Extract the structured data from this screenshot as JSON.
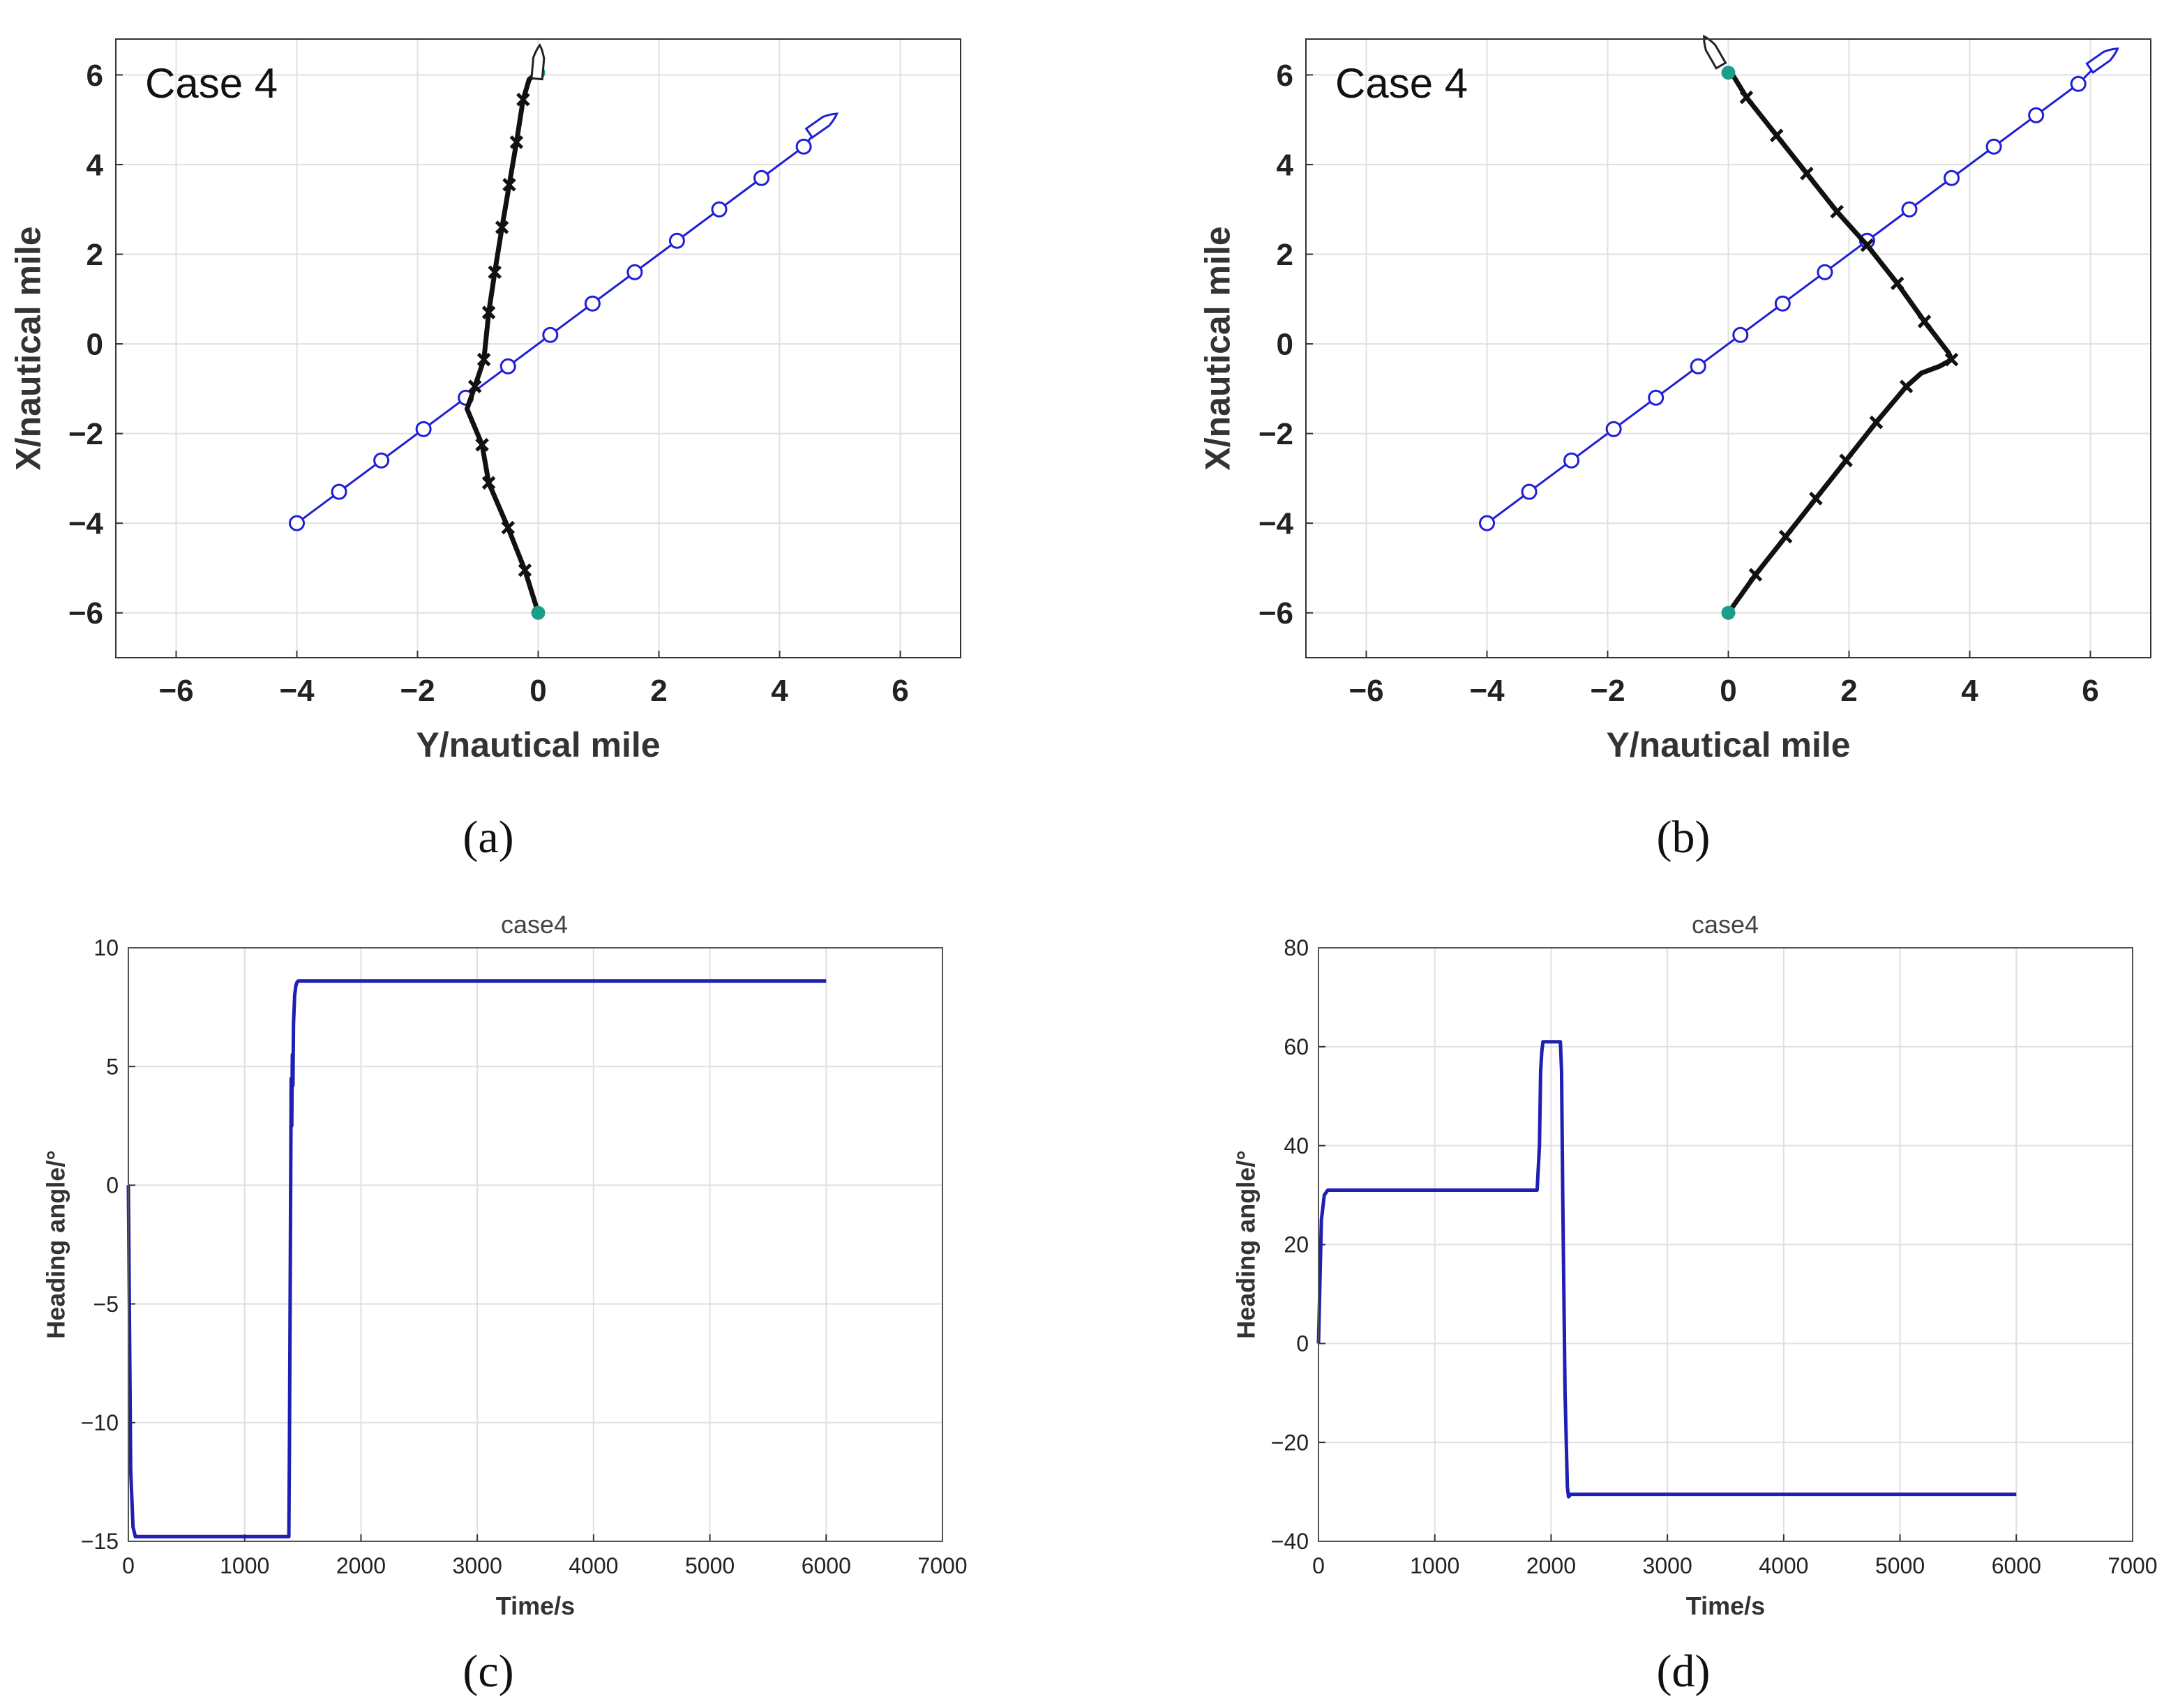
{
  "figure": {
    "colors": {
      "own_ship": "#111111",
      "target_ship": "#1f1fd6",
      "start_end_marker": "#1a9e8a",
      "heading_line": "#1f1fb4",
      "grid": "#e0e0e0",
      "axis": "#333333"
    }
  },
  "chart_data": [
    {
      "id": "a",
      "panel_label": "(a)",
      "type": "line",
      "annotation": "Case 4",
      "xlabel": "Y/nautical mile",
      "ylabel": "X/nautical mile",
      "xlim": [
        -7,
        7
      ],
      "ylim": [
        -7,
        6.8
      ],
      "xticks": [
        -6,
        -4,
        -2,
        0,
        2,
        4,
        6
      ],
      "yticks": [
        -6,
        -4,
        -2,
        0,
        2,
        4,
        6
      ],
      "xtick_labels": [
        "−6",
        "−4",
        "−2",
        "0",
        "2",
        "4",
        "6"
      ],
      "ytick_labels": [
        "−6",
        "−4",
        "−2",
        "0",
        "2",
        "4",
        "6"
      ],
      "grid": true,
      "series": [
        {
          "name": "own ship trajectory",
          "marker": "x",
          "x": [
            0,
            -0.22,
            -0.5,
            -0.82,
            -0.93,
            -1.07,
            -1.18,
            -1.05,
            -0.9,
            -0.82,
            -0.72,
            -0.6,
            -0.48,
            -0.36,
            -0.25,
            -0.15,
            -0.06,
            0.0
          ],
          "y": [
            -6,
            -5.05,
            -4.1,
            -3.1,
            -2.25,
            -1.8,
            -1.45,
            -0.95,
            -0.35,
            0.7,
            1.6,
            2.6,
            3.55,
            4.5,
            5.45,
            5.9,
            6.0,
            6.05
          ],
          "markers_x": [
            -0.22,
            -0.5,
            -0.82,
            -0.93,
            -1.05,
            -0.9,
            -0.82,
            -0.72,
            -0.6,
            -0.48,
            -0.36,
            -0.25
          ],
          "markers_y": [
            -5.05,
            -4.1,
            -3.1,
            -2.25,
            -0.95,
            -0.35,
            0.7,
            1.6,
            2.6,
            3.55,
            4.5,
            5.45
          ]
        },
        {
          "name": "target ship trajectory",
          "marker": "o",
          "x": [
            -4,
            -3.3,
            -2.6,
            -1.9,
            -1.2,
            -0.5,
            0.2,
            0.9,
            1.6,
            2.3,
            3.0,
            3.7,
            4.4
          ],
          "y": [
            -4,
            -3.3,
            -2.6,
            -1.9,
            -1.2,
            -0.5,
            0.2,
            0.9,
            1.6,
            2.3,
            3.0,
            3.7,
            4.4
          ]
        }
      ],
      "start_point": [
        0,
        -6
      ],
      "end_point": [
        0,
        6.05
      ],
      "own_ship_icon": [
        0,
        6.1
      ],
      "target_ship_icon": [
        4.7,
        4.9
      ]
    },
    {
      "id": "b",
      "panel_label": "(b)",
      "type": "line",
      "annotation": "Case 4",
      "xlabel": "Y/nautical mile",
      "ylabel": "X/nautical mile",
      "xlim": [
        -7,
        7
      ],
      "ylim": [
        -7,
        6.8
      ],
      "xticks": [
        -6,
        -4,
        -2,
        0,
        2,
        4,
        6
      ],
      "yticks": [
        -6,
        -4,
        -2,
        0,
        2,
        4,
        6
      ],
      "xtick_labels": [
        "−6",
        "−4",
        "−2",
        "0",
        "2",
        "4",
        "6"
      ],
      "ytick_labels": [
        "−6",
        "−4",
        "−2",
        "0",
        "2",
        "4",
        "6"
      ],
      "grid": true,
      "series": [
        {
          "name": "own ship trajectory",
          "marker": "x",
          "x": [
            0,
            0.45,
            0.95,
            1.45,
            1.95,
            2.45,
            2.95,
            3.2,
            3.5,
            3.7,
            3.65,
            3.25,
            2.8,
            2.3,
            1.8,
            1.3,
            0.8,
            0.3,
            0.05
          ],
          "y": [
            -6,
            -5.15,
            -4.3,
            -3.45,
            -2.6,
            -1.75,
            -0.95,
            -0.65,
            -0.5,
            -0.35,
            -0.2,
            0.5,
            1.35,
            2.2,
            2.95,
            3.8,
            4.65,
            5.5,
            6.05
          ],
          "markers_x": [
            0.45,
            0.95,
            1.45,
            1.95,
            2.45,
            2.95,
            3.7,
            3.25,
            2.8,
            2.3,
            1.8,
            1.3,
            0.8,
            0.3
          ],
          "markers_y": [
            -5.15,
            -4.3,
            -3.45,
            -2.6,
            -1.75,
            -0.95,
            -0.35,
            0.5,
            1.35,
            2.2,
            2.95,
            3.8,
            4.65,
            5.5
          ]
        },
        {
          "name": "target ship trajectory",
          "marker": "o",
          "x": [
            -4,
            -3.3,
            -2.6,
            -1.9,
            -1.2,
            -0.5,
            0.2,
            0.9,
            1.6,
            2.3,
            3.0,
            3.7,
            4.4,
            5.1,
            5.8
          ],
          "y": [
            -4,
            -3.3,
            -2.6,
            -1.9,
            -1.2,
            -0.5,
            0.2,
            0.9,
            1.6,
            2.3,
            3.0,
            3.7,
            4.4,
            5.1,
            5.8
          ]
        }
      ],
      "start_point": [
        0,
        -6
      ],
      "end_point": [
        0,
        6.05
      ],
      "own_ship_icon": [
        -0.25,
        6.35
      ],
      "target_ship_icon": [
        6.2,
        6.35
      ]
    },
    {
      "id": "c",
      "panel_label": "(c)",
      "type": "line",
      "title": "case4",
      "xlabel": "Time/s",
      "ylabel": "Heading angle/°",
      "xlim": [
        0,
        7000
      ],
      "ylim": [
        -15,
        10
      ],
      "xticks": [
        0,
        1000,
        2000,
        3000,
        4000,
        5000,
        6000,
        7000
      ],
      "yticks": [
        -15,
        -10,
        -5,
        0,
        5,
        10
      ],
      "xtick_labels": [
        "0",
        "1000",
        "2000",
        "3000",
        "4000",
        "5000",
        "6000",
        "7000"
      ],
      "ytick_labels": [
        "−15",
        "−10",
        "−5",
        "0",
        "5",
        "10"
      ],
      "grid": true,
      "series": [
        {
          "name": "heading angle",
          "x": [
            0,
            20,
            40,
            60,
            80,
            100,
            1380,
            1385,
            1400,
            1405,
            1410,
            1415,
            1420,
            1430,
            1440,
            1450,
            1460,
            1500,
            6000
          ],
          "y": [
            0,
            -12,
            -14.4,
            -14.8,
            -14.8,
            -14.8,
            -14.8,
            -11,
            4.5,
            2.5,
            5.5,
            4.2,
            6.8,
            8.0,
            8.4,
            8.55,
            8.6,
            8.6,
            8.6
          ]
        }
      ]
    },
    {
      "id": "d",
      "panel_label": "(d)",
      "type": "line",
      "title": "case4",
      "xlabel": "Time/s",
      "ylabel": "Heading angle/°",
      "xlim": [
        0,
        7000
      ],
      "ylim": [
        -40,
        80
      ],
      "xticks": [
        0,
        1000,
        2000,
        3000,
        4000,
        5000,
        6000,
        7000
      ],
      "yticks": [
        -40,
        -20,
        0,
        20,
        40,
        60,
        80
      ],
      "xtick_labels": [
        "0",
        "1000",
        "2000",
        "3000",
        "4000",
        "5000",
        "6000",
        "7000"
      ],
      "ytick_labels": [
        "−40",
        "−20",
        "0",
        "20",
        "40",
        "60",
        "80"
      ],
      "grid": true,
      "series": [
        {
          "name": "heading angle",
          "x": [
            0,
            10,
            25,
            50,
            80,
            150,
            1880,
            1900,
            1910,
            1920,
            1930,
            1950,
            2000,
            2080,
            2090,
            2100,
            2120,
            2140,
            2150,
            2170,
            2200,
            6000
          ],
          "y": [
            0,
            10,
            25,
            30,
            31,
            31,
            31,
            40,
            55,
            59,
            61,
            61,
            61,
            61,
            55,
            30,
            -10,
            -29,
            -31,
            -30.5,
            -30.5,
            -30.5
          ]
        }
      ]
    }
  ]
}
